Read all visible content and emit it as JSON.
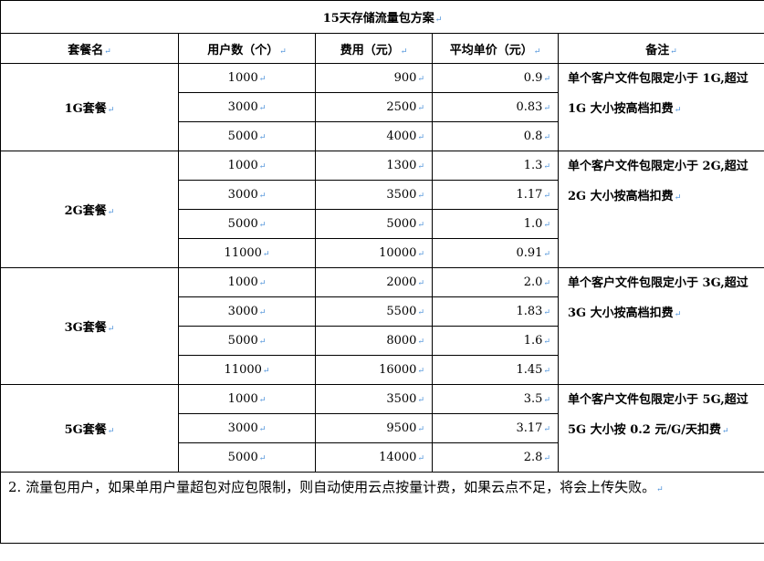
{
  "title": "15天存储流量包方案",
  "headers": [
    "套餐名",
    "用户数（个）",
    "费用（元）",
    "平均单价（元）",
    "备注"
  ],
  "packages": [
    {
      "name": "1G套餐",
      "note": "单个客户文件包限定小于 1G,超过 1G 大小按高档扣费",
      "rows": [
        [
          "1000",
          "900",
          "0.9"
        ],
        [
          "3000",
          "2500",
          "0.83"
        ],
        [
          "5000",
          "4000",
          "0.8"
        ]
      ]
    },
    {
      "name": "2G套餐",
      "note": "单个客户文件包限定小于 2G,超过 2G 大小按高档扣费",
      "rows": [
        [
          "1000",
          "1300",
          "1.3"
        ],
        [
          "3000",
          "3500",
          "1.17"
        ],
        [
          "5000",
          "5000",
          "1.0"
        ],
        [
          "11000",
          "10000",
          "0.91"
        ]
      ]
    },
    {
      "name": "3G套餐",
      "note": "单个客户文件包限定小于 3G,超过 3G 大小按高档扣费",
      "rows": [
        [
          "1000",
          "2000",
          "2.0"
        ],
        [
          "3000",
          "5500",
          "1.83"
        ],
        [
          "5000",
          "8000",
          "1.6"
        ],
        [
          "11000",
          "16000",
          "1.45"
        ]
      ]
    },
    {
      "name": "5G套餐",
      "note": "单个客户文件包限定小于 5G,超过 5G 大小按 0.2 元/G/天扣费",
      "rows": [
        [
          "1000",
          "3500",
          "3.5"
        ],
        [
          "3000",
          "9500",
          "3.17"
        ],
        [
          "5000",
          "14000",
          "2.8"
        ]
      ]
    }
  ],
  "footer": "2.  流量包用户，如果单用户量超包对应包限制，则自动使用云点按量计费，如果云点不足，将会上传失败。"
}
